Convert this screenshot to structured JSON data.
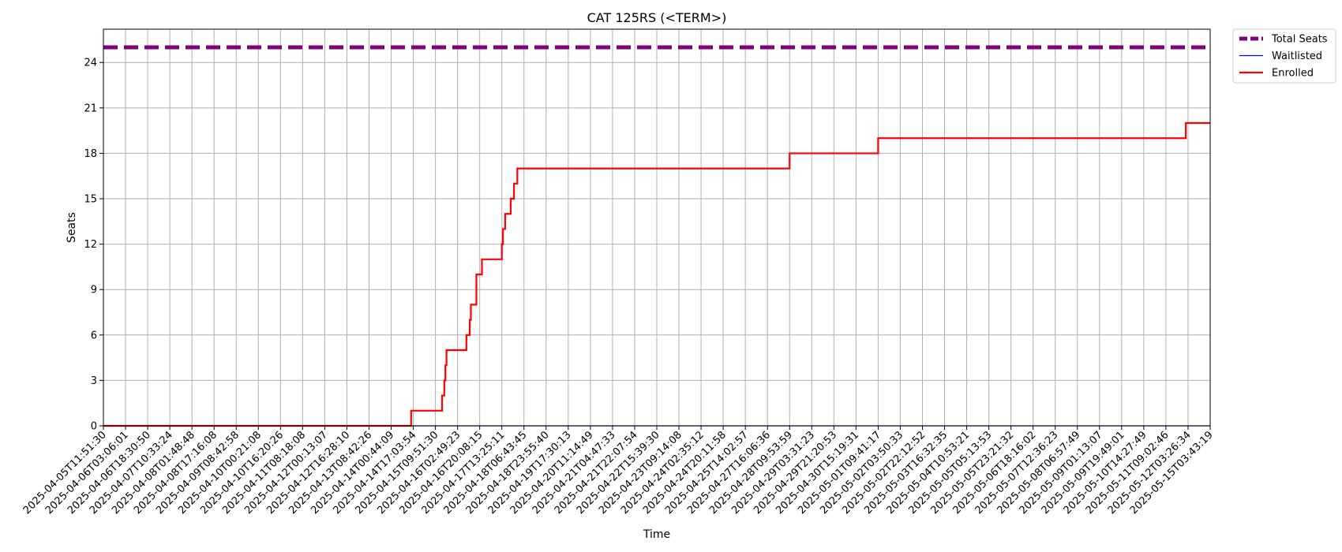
{
  "chart_data": {
    "type": "line",
    "title": "CAT 125RS (<TERM>)",
    "xlabel": "Time",
    "ylabel": "Seats",
    "ylim": [
      0,
      26.2
    ],
    "yticks": [
      0,
      3,
      6,
      9,
      12,
      15,
      18,
      21,
      24
    ],
    "grid": true,
    "legend_position": "outside-top-right",
    "x_start": "2025-04-05T11:51:30",
    "x_end": "2025-05-15T03:43:19",
    "xtick_labels": [
      "2025-04-05T11:51:30",
      "2025-04-06T03:06:01",
      "2025-04-06T18:30:50",
      "2025-04-07T10:33:24",
      "2025-04-08T01:48:48",
      "2025-04-08T17:16:08",
      "2025-04-09T08:42:58",
      "2025-04-10T00:21:08",
      "2025-04-10T16:20:26",
      "2025-04-11T08:18:08",
      "2025-04-12T00:13:07",
      "2025-04-12T16:28:10",
      "2025-04-13T08:42:26",
      "2025-04-14T00:44:09",
      "2025-04-14T17:03:54",
      "2025-04-15T09:51:30",
      "2025-04-16T02:49:23",
      "2025-04-16T20:08:15",
      "2025-04-17T13:25:11",
      "2025-04-18T06:43:45",
      "2025-04-18T23:55:40",
      "2025-04-19T17:30:13",
      "2025-04-20T11:14:49",
      "2025-04-21T04:47:33",
      "2025-04-21T22:07:54",
      "2025-04-22T15:39:30",
      "2025-04-23T09:14:08",
      "2025-04-24T02:35:12",
      "2025-04-24T20:11:58",
      "2025-04-25T14:02:57",
      "2025-04-27T16:06:36",
      "2025-04-28T09:53:59",
      "2025-04-29T03:31:23",
      "2025-04-29T21:20:53",
      "2025-04-30T15:19:31",
      "2025-05-01T09:41:17",
      "2025-05-02T03:50:33",
      "2025-05-02T22:12:52",
      "2025-05-03T16:32:35",
      "2025-05-04T10:53:21",
      "2025-05-05T05:13:53",
      "2025-05-05T23:21:32",
      "2025-05-06T18:16:02",
      "2025-05-07T12:36:23",
      "2025-05-08T06:57:49",
      "2025-05-09T01:13:07",
      "2025-05-09T19:49:01",
      "2025-05-10T14:27:49",
      "2025-05-11T09:02:46",
      "2025-05-12T03:26:34",
      "2025-05-15T03:43:19"
    ],
    "series": [
      {
        "name": "Total Seats",
        "color": "#800080",
        "style": "dashed",
        "x": [
          0,
          50
        ],
        "values": [
          25,
          25
        ]
      },
      {
        "name": "Waitlisted",
        "color": "#0000ff",
        "style": "solid",
        "x": [
          0,
          50
        ],
        "values": [
          0,
          0
        ]
      },
      {
        "name": "Enrolled",
        "color": "#ff0000",
        "style": "step",
        "x": [
          0,
          13.9,
          15.3,
          15.4,
          15.45,
          15.5,
          16.4,
          16.55,
          16.6,
          16.85,
          17.1,
          18.0,
          18.05,
          18.15,
          18.4,
          18.55,
          18.7,
          31.0,
          35.0,
          48.9,
          50
        ],
        "values": [
          0,
          1,
          2,
          3,
          4,
          5,
          6,
          7,
          8,
          10,
          11,
          12,
          13,
          14,
          15,
          16,
          17,
          18,
          19,
          20,
          20
        ]
      }
    ]
  }
}
